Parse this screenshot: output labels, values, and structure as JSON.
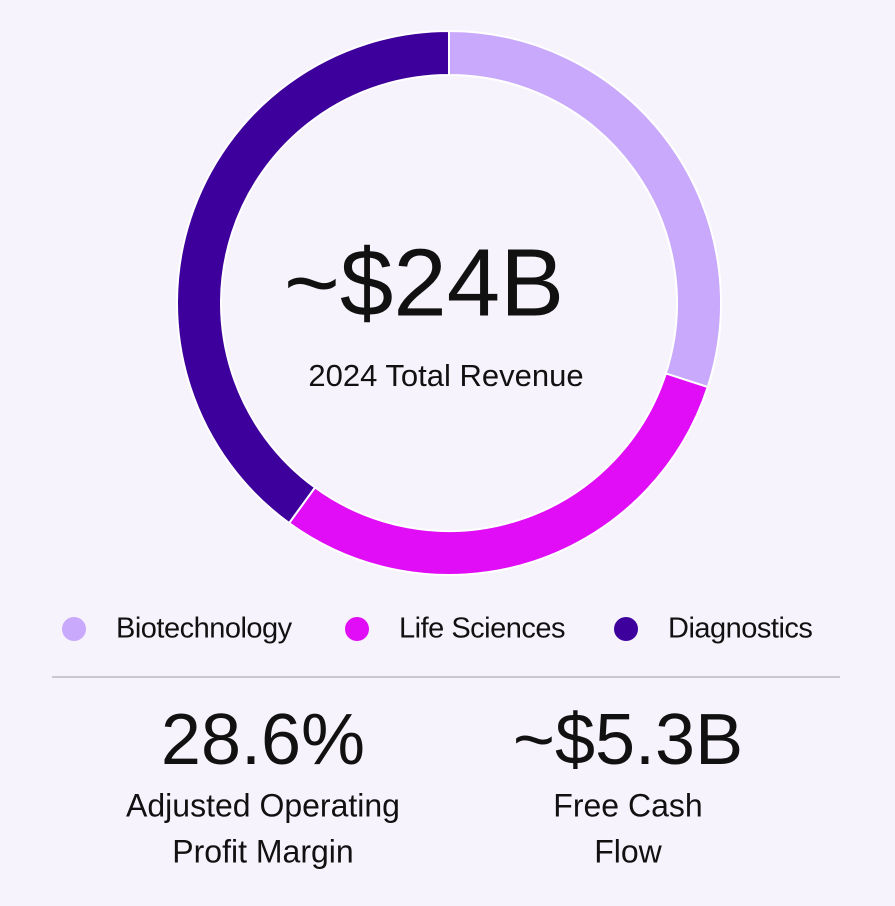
{
  "chart_data": {
    "type": "donut",
    "center_value": "~$24B",
    "center_label": "2024 Total Revenue",
    "categories": [
      "Biotechnology",
      "Life Sciences",
      "Diagnostics"
    ],
    "values": [
      30,
      30,
      40
    ],
    "colors": [
      "#c9a9fb",
      "#e00df6",
      "#3e009c"
    ],
    "legend": "bottom"
  },
  "stats": [
    {
      "value": "28.6%",
      "label_lines": [
        "Adjusted Operating",
        "Profit Margin"
      ]
    },
    {
      "value": "~$5.3B",
      "label_lines": [
        "Free Cash",
        "Flow"
      ]
    }
  ]
}
